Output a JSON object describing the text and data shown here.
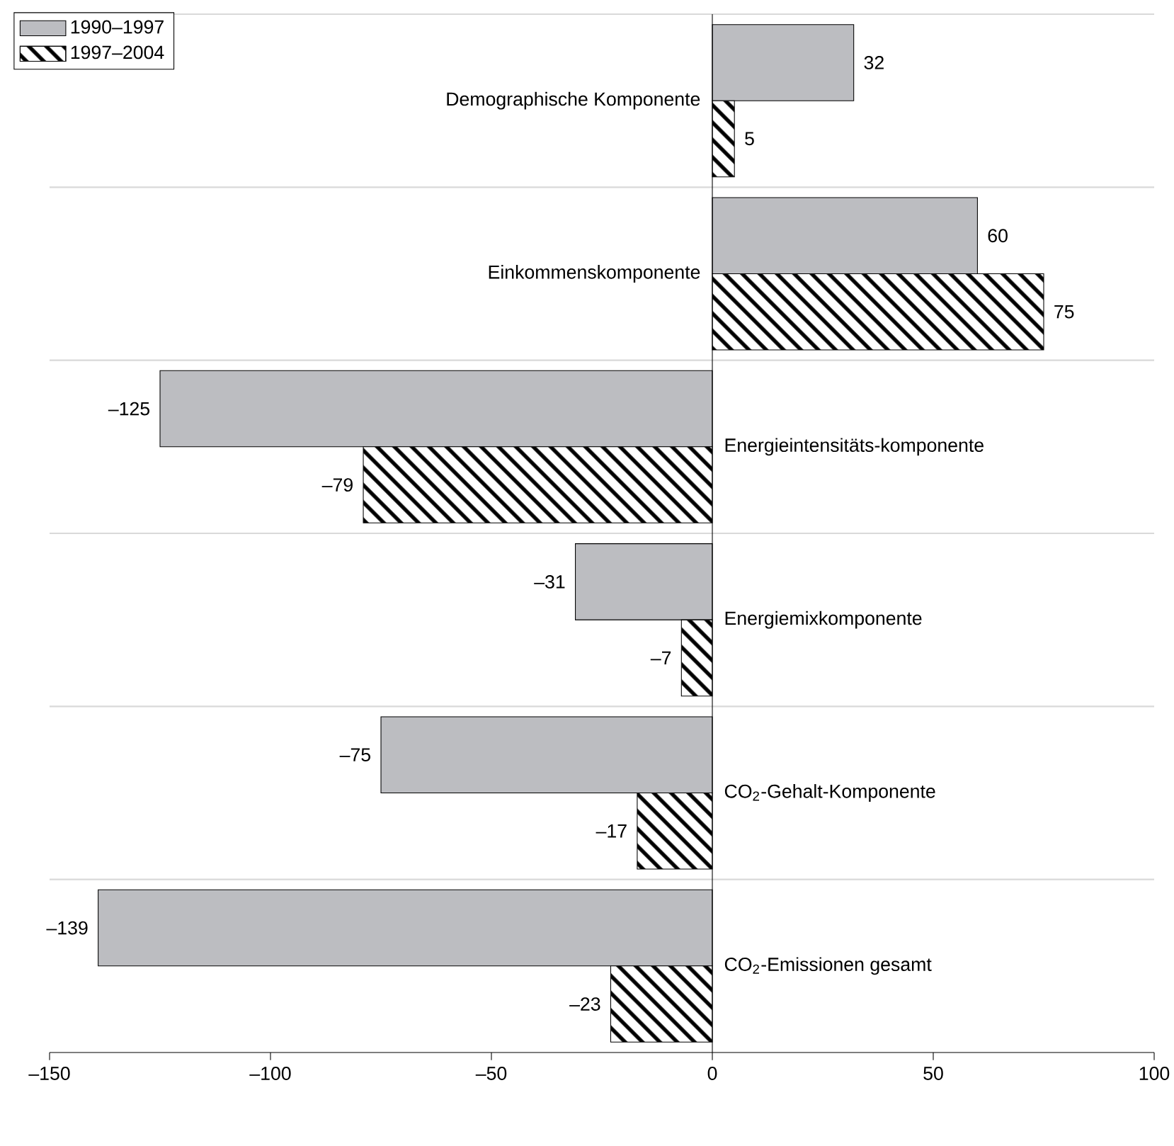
{
  "chart_data": {
    "type": "bar",
    "orientation": "horizontal",
    "categories": [
      "Demographische Komponente",
      "Einkommenskomponente",
      "Energieintensitäts-komponente",
      "Energiemixkomponente",
      "CO$_{2}$-Gehalt-Komponente",
      "CO$_{2}$-Emissionen gesamt"
    ],
    "series": [
      {
        "name": "1990–1997",
        "color": "#bcbdc1",
        "values": [
          32,
          60,
          -125,
          -31,
          -75,
          -139
        ],
        "value_labels": [
          "32",
          "60",
          "–125",
          "–31",
          "–75",
          "–139"
        ]
      },
      {
        "name": "1997–2004",
        "color": "#ffffff",
        "values": [
          5,
          75,
          -79,
          -7,
          -17,
          -23
        ],
        "value_labels": [
          "5",
          "75",
          "–79",
          "–7",
          "–17",
          "–23"
        ]
      }
    ],
    "xlim": [
      -150,
      100
    ],
    "xticks": [
      {
        "value": -150,
        "label": "–150"
      },
      {
        "value": -100,
        "label": "–100"
      },
      {
        "value": -50,
        "label": "–50"
      },
      0,
      50,
      100
    ],
    "grid": "y",
    "legend": "top left"
  }
}
